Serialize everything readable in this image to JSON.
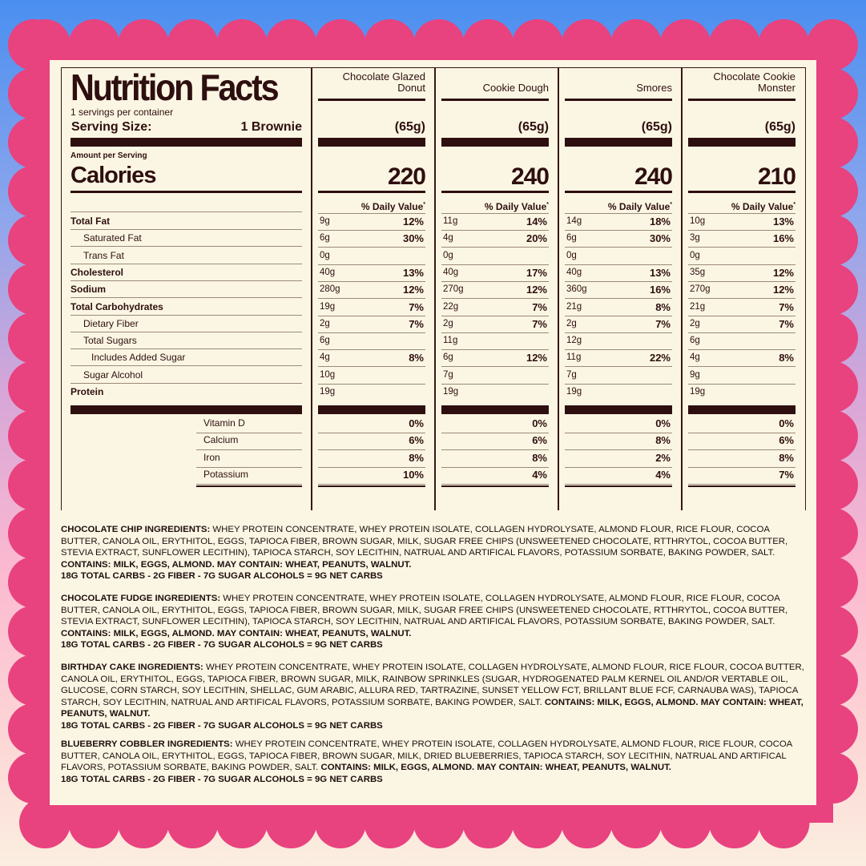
{
  "colors": {
    "frame": "#e8427f",
    "panel": "#fbf6e3",
    "ink": "#2e0f0f"
  },
  "label": {
    "title": "Nutrition Facts",
    "servings": "1 servings per container",
    "serving_size_label": "Serving Size:",
    "serving_size_value": "1 Brownie",
    "amount_per_serving": "Amount per Serving",
    "calories_label": "Calories",
    "daily_value_header": "% Daily Value",
    "daily_value_mark": "*",
    "nutrients": [
      {
        "label": "Total Fat",
        "bold": true,
        "indent": 0
      },
      {
        "label": "Saturated Fat",
        "bold": false,
        "indent": 1
      },
      {
        "label": "Trans Fat",
        "bold": false,
        "indent": 1
      },
      {
        "label": "Cholesterol",
        "bold": true,
        "indent": 0
      },
      {
        "label": "Sodium",
        "bold": true,
        "indent": 0
      },
      {
        "label": "Total Carbohydrates",
        "bold": true,
        "indent": 0
      },
      {
        "label": "Dietary Fiber",
        "bold": false,
        "indent": 1
      },
      {
        "label": "Total Sugars",
        "bold": false,
        "indent": 1
      },
      {
        "label": "Includes Added Sugar",
        "bold": false,
        "indent": 2
      },
      {
        "label": "Sugar Alcohol",
        "bold": false,
        "indent": 1
      },
      {
        "label": "Protein",
        "bold": true,
        "indent": 0
      }
    ],
    "vitamins": [
      "Vitamin D",
      "Calcium",
      "Iron",
      "Potassium"
    ],
    "flavors": [
      {
        "name": [
          "Chocolate Glazed",
          "Donut"
        ],
        "serving": "(65g)",
        "calories": "220",
        "amounts": [
          "9g",
          "6g",
          "0g",
          "40g",
          "280g",
          "19g",
          "2g",
          "6g",
          "4g",
          "10g",
          "19g"
        ],
        "dv": [
          "12%",
          "30%",
          "",
          "13%",
          "12%",
          "7%",
          "7%",
          "",
          "8%",
          "",
          ""
        ],
        "vitamins": [
          "0%",
          "6%",
          "8%",
          "10%"
        ]
      },
      {
        "name": [
          "",
          "Cookie Dough"
        ],
        "serving": "(65g)",
        "calories": "240",
        "amounts": [
          "11g",
          "4g",
          "0g",
          "40g",
          "270g",
          "22g",
          "2g",
          "11g",
          "6g",
          "7g",
          "19g"
        ],
        "dv": [
          "14%",
          "20%",
          "",
          "17%",
          "12%",
          "7%",
          "7%",
          "",
          "12%",
          "",
          ""
        ],
        "vitamins": [
          "0%",
          "6%",
          "8%",
          "4%"
        ]
      },
      {
        "name": [
          "",
          "Smores"
        ],
        "serving": "(65g)",
        "calories": "240",
        "amounts": [
          "14g",
          "6g",
          "0g",
          "40g",
          "360g",
          "21g",
          "2g",
          "12g",
          "11g",
          "7g",
          "19g"
        ],
        "dv": [
          "18%",
          "30%",
          "",
          "13%",
          "16%",
          "8%",
          "7%",
          "",
          "22%",
          "",
          ""
        ],
        "vitamins": [
          "0%",
          "8%",
          "2%",
          "4%"
        ]
      },
      {
        "name": [
          "Chocolate Cookie",
          "Monster"
        ],
        "serving": "(65g)",
        "calories": "210",
        "amounts": [
          "10g",
          "3g",
          "0g",
          "35g",
          "270g",
          "21g",
          "2g",
          "6g",
          "4g",
          "9g",
          "19g"
        ],
        "dv": [
          "13%",
          "16%",
          "",
          "12%",
          "12%",
          "7%",
          "7%",
          "",
          "8%",
          "",
          ""
        ],
        "vitamins": [
          "0%",
          "6%",
          "8%",
          "7%"
        ]
      }
    ]
  },
  "ingredients": [
    [
      {
        "b": true,
        "t": "CHOCOLATE CHIP INGREDIENTS:"
      },
      {
        "b": false,
        "t": " WHEY PROTEIN CONCENTRATE, WHEY PROTEIN ISOLATE, COLLAGEN HYDROLYSATE, ALMOND FLOUR, RICE FLOUR, COCOA BUTTER, CANOLA OIL, ERYTHITOL, EGGS, TAPIOCA FIBER, BROWN SUGAR, MILK, SUGAR FREE CHIPS (UNSWEETENED CHOCOLATE, RTTHRYTOL, COCOA BUTTER, STEVIA EXTRACT, SUNFLOWER LECITHIN), TAPIOCA STARCH, SOY LECITHIN, NATRUAL AND ARTIFICAL FLAVORS, POTASSIUM SORBATE, BAKING POWDER, SALT. "
      },
      {
        "b": true,
        "t": "CONTAINS: MILK, EGGS, ALMOND. MAY CONTAIN: WHEAT, PEANUTS, WALNUT."
      },
      {
        "b": true,
        "br": true,
        "t": "18G TOTAL CARBS - 2G FIBER - 7G SUGAR ALCOHOLS = 9G NET CARBS"
      }
    ],
    [
      {
        "b": true,
        "t": "CHOCOLATE FUDGE INGREDIENTS:"
      },
      {
        "b": false,
        "t": " WHEY PROTEIN CONCENTRATE, WHEY PROTEIN ISOLATE, COLLAGEN HYDROLYSATE, ALMOND FLOUR, RICE FLOUR, COCOA BUTTER, CANOLA OIL, ERYTHITOL, EGGS, TAPIOCA FIBER, BROWN SUGAR, MILK, SUGAR FREE CHIPS (UNSWEETENED CHOCOLATE, RTTHRYTOL, COCOA BUTTER, STEVIA EXTRACT, SUNFLOWER LECITHIN), TAPIOCA STARCH, SOY LECITHIN, NATRUAL AND ARTIFICAL FLAVORS, POTASSIUM SORBATE, BAKING POWDER, SALT. "
      },
      {
        "b": true,
        "t": "CONTAINS: MILK, EGGS, ALMOND. MAY CONTAIN: WHEAT, PEANUTS, WALNUT."
      },
      {
        "b": true,
        "br": true,
        "t": "18G TOTAL CARBS - 2G FIBER - 7G SUGAR ALCOHOLS = 9G NET CARBS"
      }
    ],
    [
      {
        "b": true,
        "t": "BIRTHDAY CAKE INGREDIENTS:"
      },
      {
        "b": false,
        "t": " WHEY PROTEIN CONCENTRATE, WHEY PROTEIN ISOLATE, COLLAGEN HYDROLYSATE, ALMOND FLOUR, RICE FLOUR, COCOA BUTTER, CANOLA OIL, ERYTHITOL, EGGS, TAPIOCA FIBER, BROWN SUGAR, MILK, RAINBOW SPRINKLES (SUGAR, HYDROGENATED PALM KERNEL OIL AND/OR VERTABLE OIL, GLUCOSE, CORN STARCH, SOY LECITHIN, SHELLAC, GUM ARABIC, ALLURA RED, TARTRAZINE, SUNSET YELLOW FCT, BRILLANT BLUE FCF, CARNAUBA WAS), TAPIOCA STARCH, SOY LECITHIN, NATRUAL AND ARTIFICAL FLAVORS, POTASSIUM SORBATE, BAKING POWDER, SALT. "
      },
      {
        "b": true,
        "t": "CONTAINS: MILK, EGGS, ALMOND. MAY CONTAIN: WHEAT, PEANUTS, WALNUT."
      },
      {
        "b": true,
        "br": true,
        "t": "18G TOTAL CARBS - 2G FIBER - 7G SUGAR ALCOHOLS = 9G NET CARBS"
      }
    ],
    [
      {
        "b": true,
        "t": "BLUEBERRY COBBLER INGREDIENTS:"
      },
      {
        "b": false,
        "t": " WHEY PROTEIN CONCENTRATE, WHEY PROTEIN ISOLATE, COLLAGEN HYDROLYSATE, ALMOND FLOUR, RICE FLOUR, COCOA BUTTER, CANOLA OIL, ERYTHITOL, EGGS, TAPIOCA FIBER, BROWN SUGAR, MILK, DRIED BLUEBERRIES, TAPIOCA STARCH, SOY LECITHIN, NATRUAL AND ARTIFICAL FLAVORS, POTASSIUM SORBATE, BAKING POWDER, SALT. "
      },
      {
        "b": true,
        "t": "CONTAINS: MILK, EGGS, ALMOND. MAY CONTAIN: WHEAT, PEANUTS, WALNUT."
      },
      {
        "b": true,
        "br": true,
        "t": "18G TOTAL CARBS - 2G FIBER - 7G SUGAR ALCOHOLS = 9G NET CARBS"
      }
    ]
  ]
}
